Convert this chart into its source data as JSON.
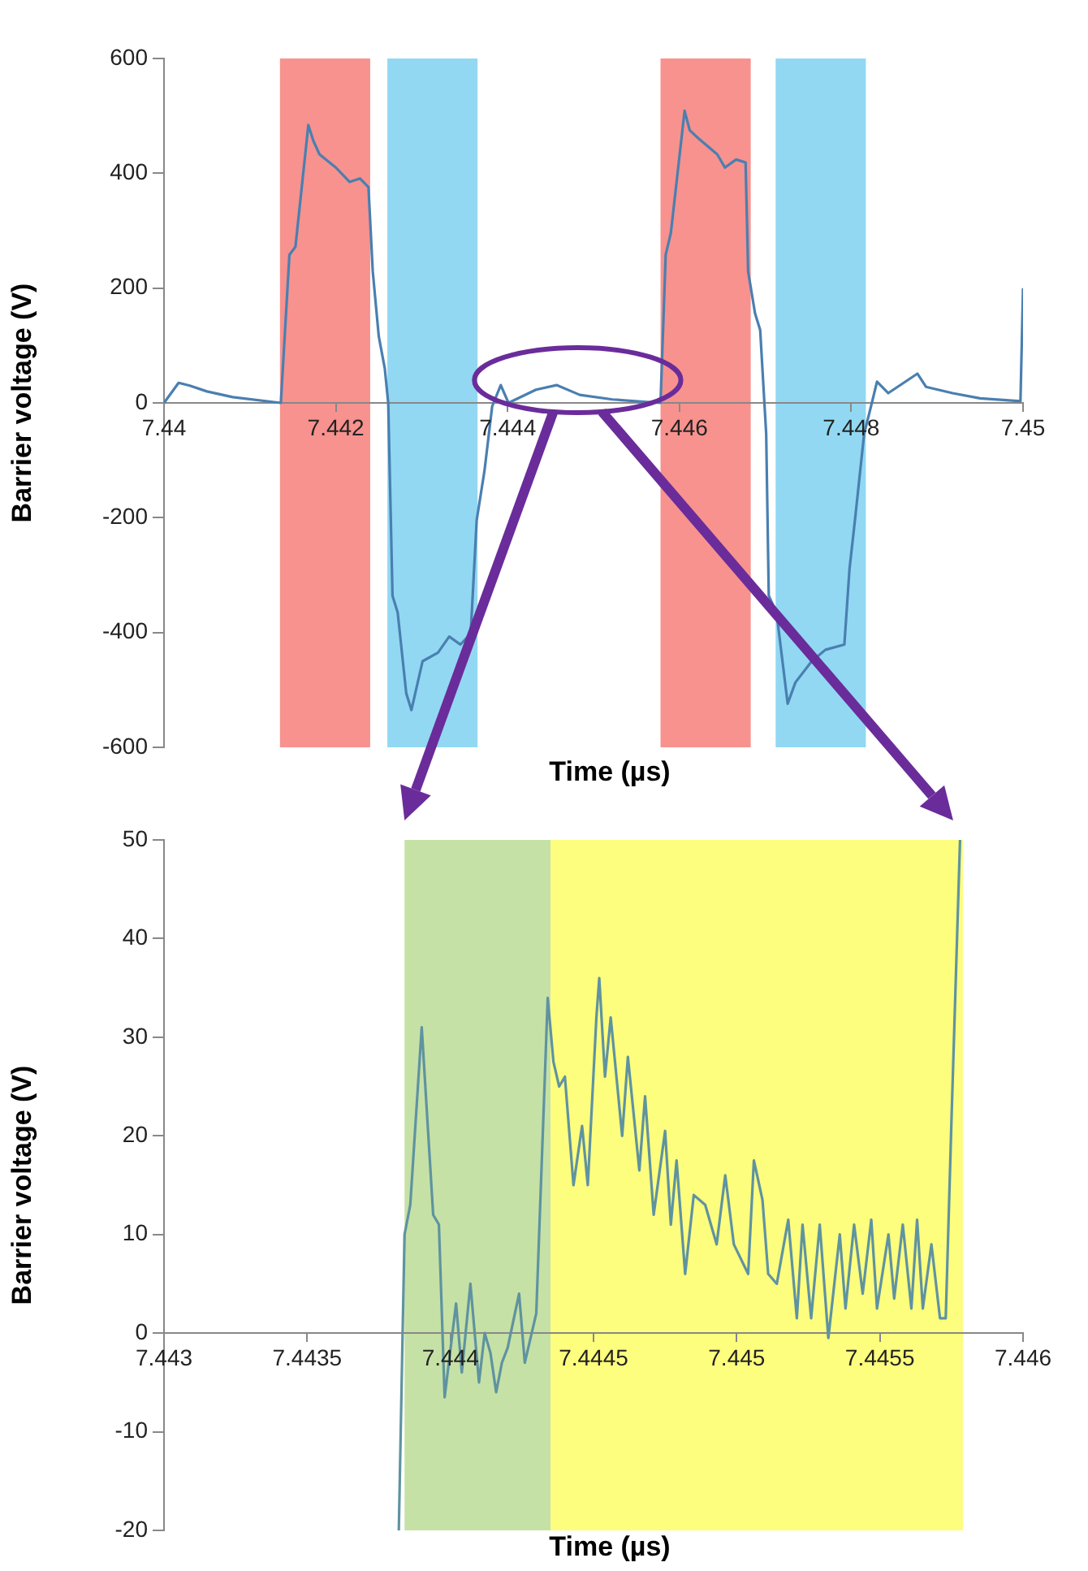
{
  "chart_data": [
    {
      "type": "line",
      "xlabel": "Time (µs)",
      "ylabel": "Barrier voltage (V)",
      "x": [
        7.44,
        7.44017,
        7.4403,
        7.4405,
        7.4408,
        7.44136,
        7.44146,
        7.44153,
        7.44168,
        7.44174,
        7.44181,
        7.442,
        7.44216,
        7.44228,
        7.44238,
        7.44243,
        7.4425,
        7.44257,
        7.44261,
        7.44266,
        7.44272,
        7.44282,
        7.44288,
        7.44301,
        7.44319,
        7.44332,
        7.44345,
        7.44357,
        7.44364,
        7.44373,
        7.44382,
        7.44392,
        7.44401,
        7.44433,
        7.44457,
        7.44484,
        7.44522,
        7.44578,
        7.44584,
        7.4459,
        7.44606,
        7.44612,
        7.44622,
        7.44644,
        7.44653,
        7.44666,
        7.44677,
        7.4468,
        7.44688,
        7.44694,
        7.44701,
        7.44704,
        7.44713,
        7.44726,
        7.44735,
        7.44754,
        7.4477,
        7.44792,
        7.44798,
        7.44805,
        7.44815,
        7.44824,
        7.4483,
        7.44843,
        7.44877,
        7.44887,
        7.44918,
        7.4495,
        7.44997,
        7.45
      ],
      "series": [
        {
          "color": "#4a7fb0",
          "values": [
            0,
            35,
            30,
            20,
            10,
            0,
            258,
            272,
            484,
            456,
            433,
            410,
            385,
            391,
            376,
            229,
            116,
            60,
            0,
            -336,
            -365,
            -506,
            -535,
            -450,
            -435,
            -407,
            -421,
            -402,
            -204,
            -119,
            -6,
            31,
            0,
            23,
            31,
            14,
            6,
            0,
            258,
            296,
            509,
            475,
            461,
            433,
            410,
            424,
            419,
            229,
            156,
            127,
            -54,
            -336,
            -365,
            -524,
            -487,
            -450,
            -430,
            -421,
            -289,
            -195,
            -54,
            0,
            37,
            17,
            51,
            28,
            17,
            8,
            3,
            200
          ]
        }
      ],
      "xlim": [
        7.44,
        7.45
      ],
      "xticks": [
        7.44,
        7.442,
        7.444,
        7.446,
        7.448,
        7.45
      ],
      "ylim": [
        -600,
        600
      ],
      "yticks": [
        -600,
        -400,
        -200,
        0,
        200,
        400,
        600
      ],
      "bands": [
        {
          "axis": "x",
          "from": 7.44135,
          "to": 7.4424,
          "color": "#f7928e"
        },
        {
          "axis": "x",
          "from": 7.4426,
          "to": 7.44365,
          "color": "#92d8f3"
        },
        {
          "axis": "x",
          "from": 7.44578,
          "to": 7.44683,
          "color": "#f7928e"
        },
        {
          "axis": "x",
          "from": 7.44712,
          "to": 7.44817,
          "color": "#92d8f3"
        }
      ]
    },
    {
      "type": "line",
      "xlabel": "Time (µs)",
      "ylabel": "Barrier voltage (V)",
      "x": [
        7.44382,
        7.44384,
        7.44386,
        7.4439,
        7.44394,
        7.44396,
        7.44398,
        7.44402,
        7.44404,
        7.44407,
        7.4441,
        7.44412,
        7.44414,
        7.44416,
        7.44418,
        7.4442,
        7.44424,
        7.44426,
        7.4443,
        7.44434,
        7.44436,
        7.44438,
        7.4444,
        7.44443,
        7.44446,
        7.44448,
        7.44451,
        7.44452,
        7.44454,
        7.44456,
        7.4446,
        7.44462,
        7.44466,
        7.44468,
        7.44471,
        7.44475,
        7.44477,
        7.44479,
        7.44482,
        7.44485,
        7.44489,
        7.44493,
        7.44496,
        7.44499,
        7.44504,
        7.44506,
        7.44509,
        7.44511,
        7.44514,
        7.44518,
        7.44521,
        7.44523,
        7.44526,
        7.44529,
        7.44532,
        7.44536,
        7.44538,
        7.44541,
        7.44544,
        7.44547,
        7.44549,
        7.44553,
        7.44555,
        7.44558,
        7.44561,
        7.44563,
        7.44565,
        7.44568,
        7.44571,
        7.44573,
        7.44575,
        7.44578
      ],
      "series": [
        {
          "color": "#5f93a0",
          "values": [
            -20,
            10,
            13,
            31,
            12,
            11,
            -6.5,
            3,
            -4,
            5,
            -5,
            0,
            -2,
            -6,
            -3,
            -1.5,
            4,
            -3,
            2,
            34,
            27.5,
            25,
            26,
            15,
            21,
            15,
            32,
            36,
            26,
            32,
            20,
            28,
            16.5,
            24,
            12,
            20.5,
            11,
            17.5,
            6,
            14,
            13,
            9,
            16,
            9,
            6,
            17.5,
            13.5,
            6,
            5,
            11.5,
            1.5,
            11,
            1.5,
            11,
            -0.5,
            10,
            2.5,
            11,
            4,
            11.5,
            2.5,
            10,
            3.5,
            11,
            2.5,
            11.5,
            2.5,
            9,
            1.5,
            1.5,
            21.5,
            50
          ]
        }
      ],
      "xlim": [
        7.443,
        7.446
      ],
      "xticks": [
        7.443,
        7.4435,
        7.444,
        7.4445,
        7.445,
        7.4455,
        7.446
      ],
      "ylim": [
        -20,
        50
      ],
      "yticks": [
        -20,
        -10,
        0,
        10,
        20,
        30,
        40,
        50
      ],
      "bands": [
        {
          "axis": "x",
          "from": 7.44384,
          "to": 7.44435,
          "color": "#c6e1a6"
        },
        {
          "axis": "x",
          "from": 7.44435,
          "to": 7.44579,
          "color": "#fdfd7e"
        }
      ]
    }
  ]
}
